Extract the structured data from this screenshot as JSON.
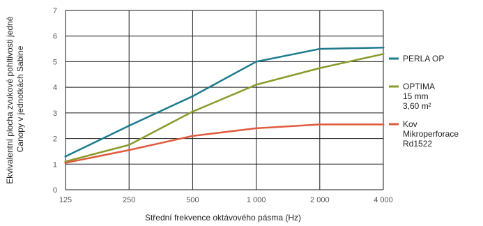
{
  "chart_data": {
    "type": "line",
    "title": "",
    "xlabel": "Střední frekvence oktávového pásma (Hz)",
    "ylabel_lines": [
      "Ekvivalentní plocha zvukové pohltivosti jedné",
      "Canopy v jednotkách Sabine"
    ],
    "categories": [
      "125",
      "250",
      "500",
      "1 000",
      "2 000",
      "4 000"
    ],
    "ylim": [
      0,
      7
    ],
    "yticks": [
      "0",
      "1",
      "2",
      "3",
      "4",
      "5",
      "6",
      "7"
    ],
    "grid": true,
    "legend_position": "right",
    "series": [
      {
        "name_lines": [
          "PERLA OP"
        ],
        "color": "#1c7a8c",
        "values": [
          1.3,
          2.5,
          3.65,
          5.0,
          5.5,
          5.55
        ]
      },
      {
        "name_lines": [
          "OPTIMA",
          "15 mm",
          "3,60 m²"
        ],
        "color": "#8a9a2a",
        "values": [
          1.1,
          1.75,
          3.05,
          4.1,
          4.75,
          5.3
        ]
      },
      {
        "name_lines": [
          "Kov",
          "Mikroperforace",
          "Rd1522"
        ],
        "color": "#e05a3c",
        "values": [
          1.05,
          1.55,
          2.1,
          2.4,
          2.55,
          2.55
        ]
      }
    ]
  }
}
